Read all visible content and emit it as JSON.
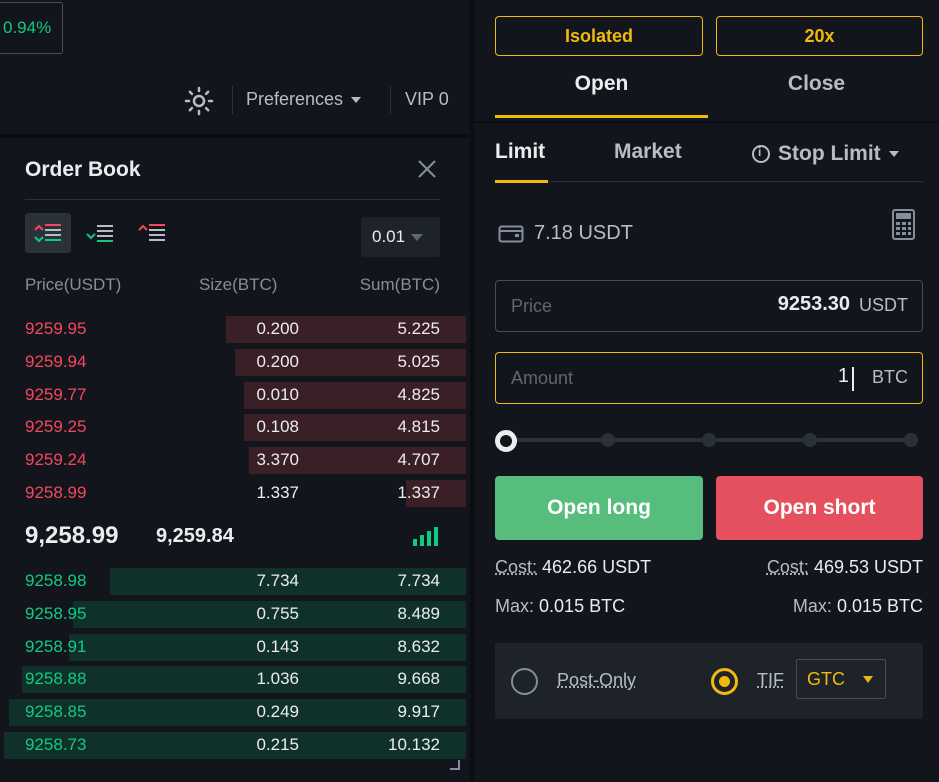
{
  "header": {
    "change_pct": "0.94%",
    "preferences_label": "Preferences",
    "vip_label": "VIP 0"
  },
  "order_book": {
    "title": "Order Book",
    "precision": "0.01",
    "columns": {
      "price": "Price(USDT)",
      "size": "Size(BTC)",
      "sum": "Sum(BTC)"
    },
    "asks": [
      {
        "price": "9259.95",
        "size": "0.200",
        "sum": "5.225",
        "depth": 0.52
      },
      {
        "price": "9259.94",
        "size": "0.200",
        "sum": "5.025",
        "depth": 0.5
      },
      {
        "price": "9259.77",
        "size": "0.010",
        "sum": "4.825",
        "depth": 0.48
      },
      {
        "price": "9259.25",
        "size": "0.108",
        "sum": "4.815",
        "depth": 0.48
      },
      {
        "price": "9259.24",
        "size": "3.370",
        "sum": "4.707",
        "depth": 0.47
      },
      {
        "price": "9258.99",
        "size": "1.337",
        "sum": "1.337",
        "depth": 0.13
      }
    ],
    "last_price": "9,258.99",
    "mark_price": "9,259.84",
    "bids": [
      {
        "price": "9258.98",
        "size": "7.734",
        "sum": "7.734",
        "depth": 0.77
      },
      {
        "price": "9258.95",
        "size": "0.755",
        "sum": "8.489",
        "depth": 0.85
      },
      {
        "price": "9258.91",
        "size": "0.143",
        "sum": "8.632",
        "depth": 0.86
      },
      {
        "price": "9258.88",
        "size": "1.036",
        "sum": "9.668",
        "depth": 0.96
      },
      {
        "price": "9258.85",
        "size": "0.249",
        "sum": "9.917",
        "depth": 0.99
      },
      {
        "price": "9258.73",
        "size": "0.215",
        "sum": "10.132",
        "depth": 1.0
      }
    ]
  },
  "order_form": {
    "margin_mode": "Isolated",
    "leverage": "20x",
    "tabs": {
      "open": "Open",
      "close": "Close"
    },
    "order_types": {
      "limit": "Limit",
      "market": "Market",
      "stop_limit": "Stop Limit"
    },
    "balance": "7.18 USDT",
    "price": {
      "label": "Price",
      "value": "9253.30",
      "unit": "USDT"
    },
    "amount": {
      "label": "Amount",
      "value": "1",
      "unit": "BTC"
    },
    "slider_percent": 0,
    "open_long": "Open long",
    "open_short": "Open short",
    "cost_label": "Cost:",
    "long_cost": "462.66 USDT",
    "short_cost": "469.53 USDT",
    "max_label": "Max:",
    "long_max": "0.015 BTC",
    "short_max": "0.015 BTC",
    "post_only_label": "Post-Only",
    "tif_label": "TIF",
    "tif_value": "GTC"
  },
  "colors": {
    "accent": "#f0b90b",
    "buy": "#0ecb81",
    "sell": "#f6465d"
  }
}
